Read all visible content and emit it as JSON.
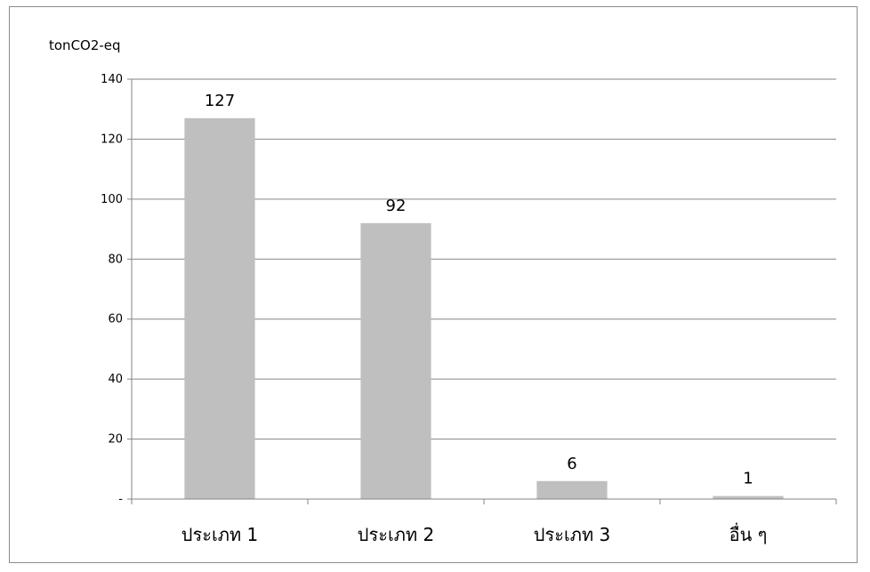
{
  "chart_data": {
    "type": "bar",
    "unit_label": "tonCO2-eq",
    "categories": [
      "ประเภท 1",
      "ประเภท 2",
      "ประเภท 3",
      "อื่น ๆ"
    ],
    "values": [
      127,
      92,
      6,
      1
    ],
    "data_labels": [
      "127",
      "92",
      "6",
      "1"
    ],
    "y_ticks": [
      0,
      20,
      40,
      60,
      80,
      100,
      120,
      140
    ],
    "y_tick_labels": [
      "-",
      "20",
      "40",
      "60",
      "80",
      "100",
      "120",
      "140"
    ],
    "ylim": [
      0,
      140
    ],
    "grid": true,
    "legend": "none",
    "bar_color": "#bfbfbf"
  }
}
